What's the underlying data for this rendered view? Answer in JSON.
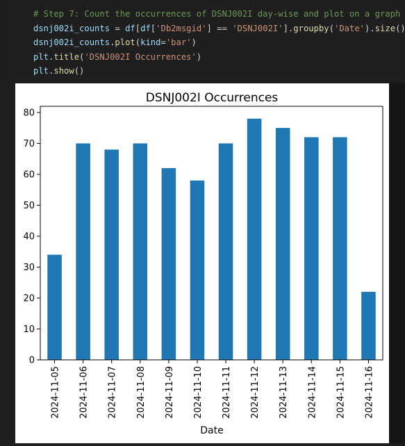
{
  "code": {
    "lines": [
      [
        {
          "t": "# Step 7: Count the occurrences of DSNJ002I day-wise and plot on a graph",
          "c": "comment"
        }
      ],
      [
        {
          "t": "dsnj002i_counts",
          "c": "var"
        },
        {
          "t": " = ",
          "c": "op"
        },
        {
          "t": "df",
          "c": "var"
        },
        {
          "t": "[",
          "c": "op"
        },
        {
          "t": "df",
          "c": "var"
        },
        {
          "t": "[",
          "c": "op"
        },
        {
          "t": "'Db2msgid'",
          "c": "str"
        },
        {
          "t": "] == ",
          "c": "op"
        },
        {
          "t": "'DSNJ002I'",
          "c": "str"
        },
        {
          "t": "].",
          "c": "op"
        },
        {
          "t": "groupby",
          "c": "fn"
        },
        {
          "t": "(",
          "c": "op"
        },
        {
          "t": "'Date'",
          "c": "str"
        },
        {
          "t": ").",
          "c": "op"
        },
        {
          "t": "size",
          "c": "fn"
        },
        {
          "t": "()",
          "c": "op"
        }
      ],
      [
        {
          "t": "dsnj002i_counts",
          "c": "var"
        },
        {
          "t": ".",
          "c": "op"
        },
        {
          "t": "plot",
          "c": "fn"
        },
        {
          "t": "(",
          "c": "op"
        },
        {
          "t": "kind",
          "c": "var"
        },
        {
          "t": "=",
          "c": "op"
        },
        {
          "t": "'bar'",
          "c": "str"
        },
        {
          "t": ")",
          "c": "op"
        }
      ],
      [
        {
          "t": "plt",
          "c": "var"
        },
        {
          "t": ".",
          "c": "op"
        },
        {
          "t": "title",
          "c": "fn"
        },
        {
          "t": "(",
          "c": "op"
        },
        {
          "t": "'DSNJ002I Occurrences'",
          "c": "str"
        },
        {
          "t": ")",
          "c": "op"
        }
      ],
      [
        {
          "t": "plt",
          "c": "var"
        },
        {
          "t": ".",
          "c": "op"
        },
        {
          "t": "show",
          "c": "fn"
        },
        {
          "t": "()",
          "c": "op"
        }
      ]
    ]
  },
  "chart_data": {
    "type": "bar",
    "title": "DSNJ002I Occurrences",
    "xlabel": "Date",
    "ylabel": "",
    "categories": [
      "2024-11-05",
      "2024-11-06",
      "2024-11-07",
      "2024-11-08",
      "2024-11-09",
      "2024-11-10",
      "2024-11-11",
      "2024-11-12",
      "2024-11-13",
      "2024-11-14",
      "2024-11-15",
      "2024-11-16"
    ],
    "values": [
      34,
      70,
      68,
      70,
      62,
      58,
      70,
      78,
      75,
      72,
      72,
      22
    ],
    "ylim": [
      0,
      82
    ],
    "yticks": [
      0,
      10,
      20,
      30,
      40,
      50,
      60,
      70,
      80
    ],
    "bar_color": "#1f77b4",
    "grid": false,
    "legend": "none"
  }
}
